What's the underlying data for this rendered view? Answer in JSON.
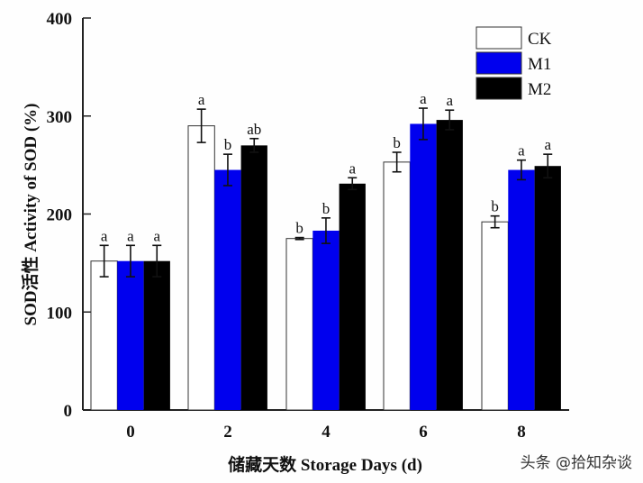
{
  "chart_data": {
    "type": "bar",
    "title": "",
    "xlabel": "储藏天数 Storage Days (d)",
    "ylabel": "SOD活性  Activity of SOD (%)",
    "ylim": [
      0,
      400
    ],
    "yticks": [
      0,
      100,
      200,
      300,
      400
    ],
    "categories": [
      "0",
      "2",
      "4",
      "6",
      "8"
    ],
    "grid": false,
    "legend_position": "top-right",
    "series": [
      {
        "name": "CK",
        "color": "#ffffff",
        "values": [
          152,
          290,
          175,
          253,
          192
        ],
        "errors": [
          16,
          17,
          1,
          10,
          6
        ],
        "significance": [
          "a",
          "a",
          "b",
          "b",
          "b"
        ]
      },
      {
        "name": "M1",
        "color": "#0000ee",
        "values": [
          152,
          245,
          183,
          292,
          245
        ],
        "errors": [
          16,
          16,
          13,
          16,
          10
        ],
        "significance": [
          "a",
          "b",
          "b",
          "a",
          "a"
        ]
      },
      {
        "name": "M2",
        "color": "#000000",
        "values": [
          152,
          270,
          231,
          296,
          249
        ],
        "errors": [
          16,
          7,
          6,
          10,
          12
        ],
        "significance": [
          "a",
          "ab",
          "a",
          "a",
          "a"
        ]
      }
    ]
  },
  "watermark": "头条 @拾知杂谈"
}
